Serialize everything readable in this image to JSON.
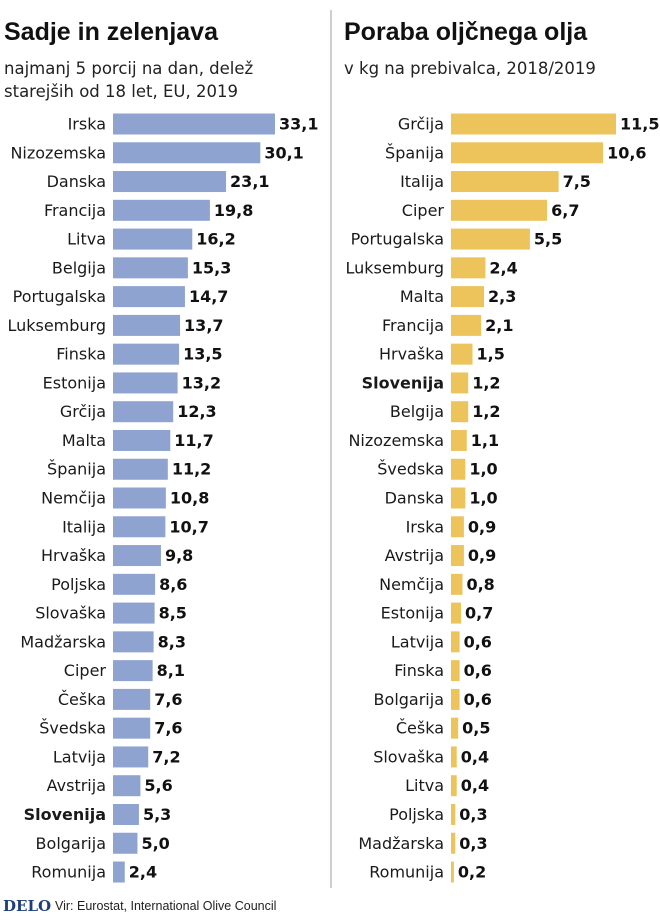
{
  "colors": {
    "left_bar": "#8ea3cf",
    "right_bar": "#ecc45b",
    "divider": "#bfbfbf"
  },
  "footer": {
    "logo": "DELO",
    "source": "Vir: Eurostat, International Olive Council"
  },
  "chart_data": [
    {
      "type": "bar",
      "orientation": "horizontal",
      "title": "Sadje in zelenjava",
      "subtitle": [
        "najmanj 5 porcij na dan, delež",
        "starejših od 18 let, EU, 2019"
      ],
      "highlight": "Slovenija",
      "categories": [
        "Irska",
        "Nizozemska",
        "Danska",
        "Francija",
        "Litva",
        "Belgija",
        "Portugalska",
        "Luksemburg",
        "Finska",
        "Estonija",
        "Grčija",
        "Malta",
        "Španija",
        "Nemčija",
        "Italija",
        "Hrvaška",
        "Poljska",
        "Slovaška",
        "Madžarska",
        "Ciper",
        "Češka",
        "Švedska",
        "Latvija",
        "Avstrija",
        "Slovenija",
        "Bolgarija",
        "Romunija"
      ],
      "values": [
        33.1,
        30.1,
        23.1,
        19.8,
        16.2,
        15.3,
        14.7,
        13.7,
        13.5,
        13.2,
        12.3,
        11.7,
        11.2,
        10.8,
        10.7,
        9.8,
        8.6,
        8.5,
        8.3,
        8.1,
        7.6,
        7.6,
        7.2,
        5.6,
        5.3,
        5.0,
        2.4
      ],
      "labels": [
        "33,1",
        "30,1",
        "23,1",
        "19,8",
        "16,2",
        "15,3",
        "14,7",
        "13,7",
        "13,5",
        "13,2",
        "12,3",
        "11,7",
        "11,2",
        "10,8",
        "10,7",
        "9,8",
        "8,6",
        "8,5",
        "8,3",
        "8,1",
        "7,6",
        "7,6",
        "7,2",
        "5,6",
        "5,3",
        "5,0",
        "2,4"
      ]
    },
    {
      "type": "bar",
      "orientation": "horizontal",
      "title": "Poraba oljčnega olja",
      "subtitle": [
        "v kg na prebivalca, 2018/2019"
      ],
      "highlight": "Slovenija",
      "categories": [
        "Grčija",
        "Španija",
        "Italija",
        "Ciper",
        "Portugalska",
        "Luksemburg",
        "Malta",
        "Francija",
        "Hrvaška",
        "Slovenija",
        "Belgija",
        "Nizozemska",
        "Švedska",
        "Danska",
        "Irska",
        "Avstrija",
        "Nemčija",
        "Estonija",
        "Latvija",
        "Finska",
        "Bolgarija",
        "Češka",
        "Slovaška",
        "Litva",
        "Poljska",
        "Madžarska",
        "Romunija"
      ],
      "values": [
        11.5,
        10.6,
        7.5,
        6.7,
        5.5,
        2.4,
        2.3,
        2.1,
        1.5,
        1.2,
        1.2,
        1.1,
        1.0,
        1.0,
        0.9,
        0.9,
        0.8,
        0.7,
        0.6,
        0.6,
        0.6,
        0.5,
        0.4,
        0.4,
        0.3,
        0.3,
        0.2
      ],
      "labels": [
        "11,5",
        "10,6",
        "7,5",
        "6,7",
        "5,5",
        "2,4",
        "2,3",
        "2,1",
        "1,5",
        "1,2",
        "1,2",
        "1,1",
        "1,0",
        "1,0",
        "0,9",
        "0,9",
        "0,8",
        "0,7",
        "0,6",
        "0,6",
        "0,6",
        "0,5",
        "0,4",
        "0,4",
        "0,3",
        "0,3",
        "0,2"
      ]
    }
  ]
}
